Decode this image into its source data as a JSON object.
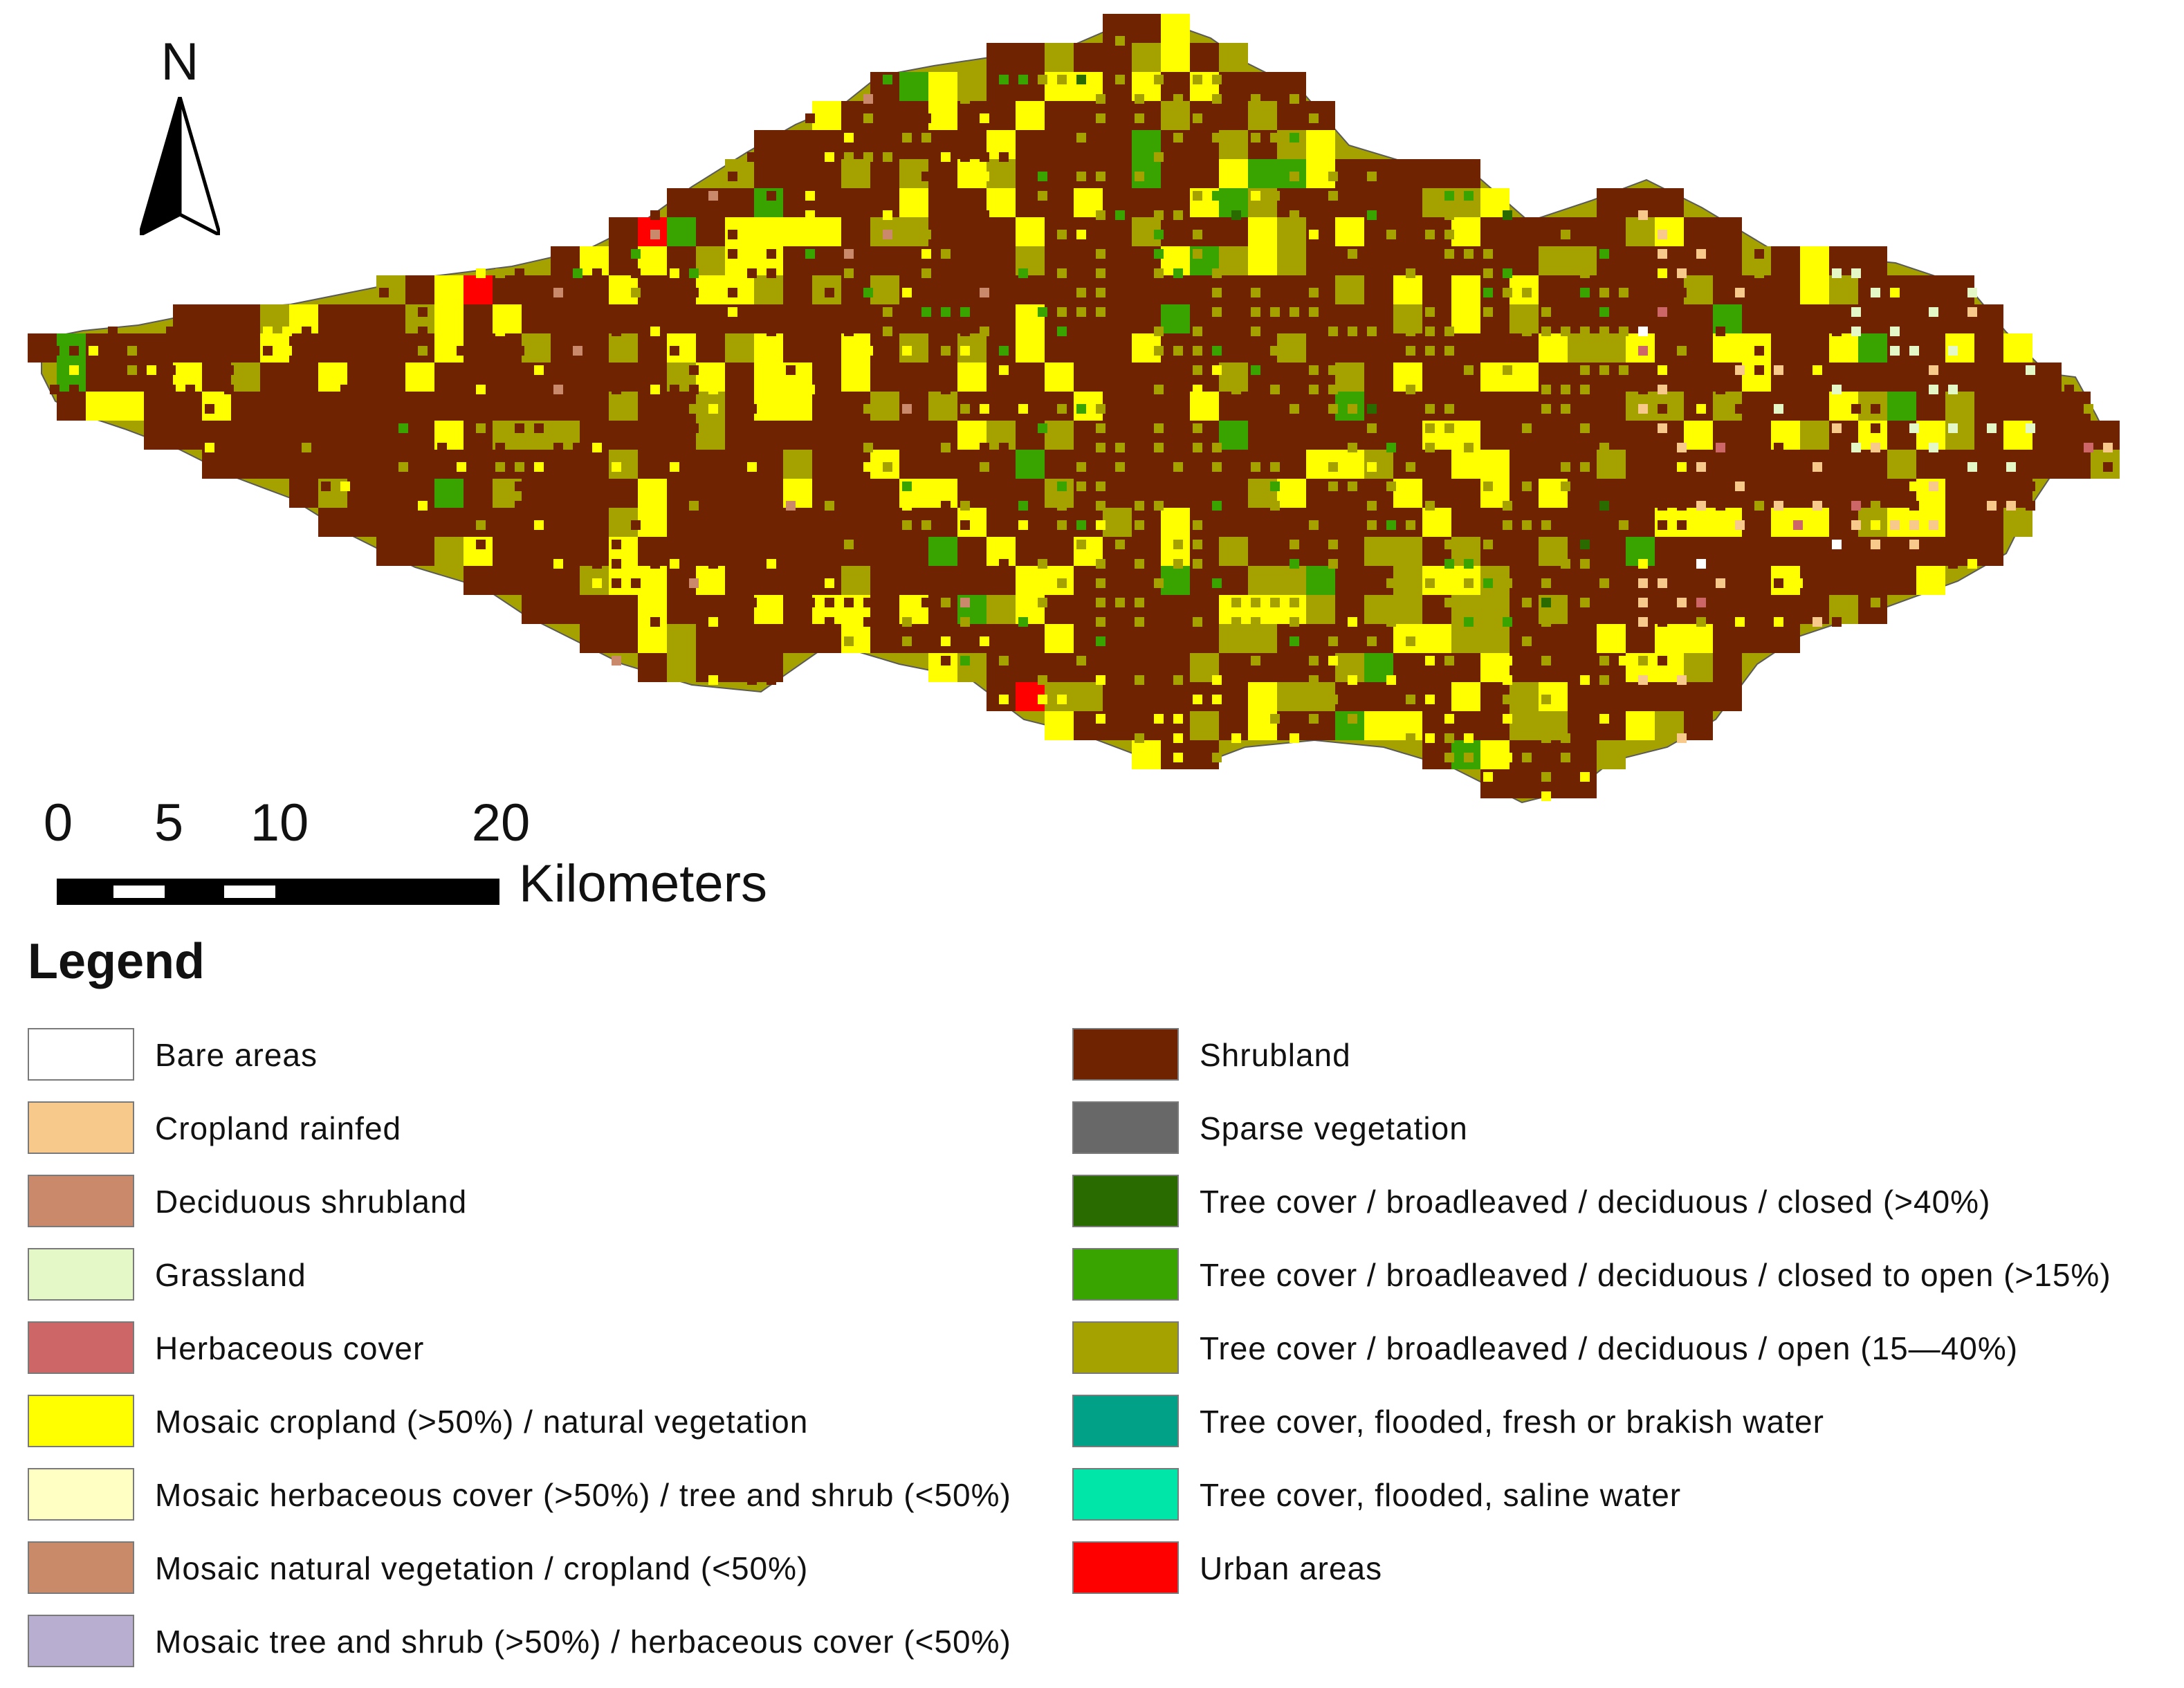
{
  "map": {
    "north_label": "N",
    "scale": {
      "ticks": [
        "0",
        "5",
        "10",
        "20"
      ],
      "units": "Kilometers"
    }
  },
  "legend": {
    "title": "Legend",
    "items": [
      {
        "label": "Bare areas",
        "color": "#ffffff",
        "key": "bare"
      },
      {
        "label": "Cropland rainfed",
        "color": "#f7c98a",
        "key": "crop"
      },
      {
        "label": "Deciduous shrubland",
        "color": "#c9896a",
        "key": "decshrub"
      },
      {
        "label": "Grassland",
        "color": "#e3f7c7",
        "key": "grass"
      },
      {
        "label": "Herbaceous cover",
        "color": "#cd6666",
        "key": "herb"
      },
      {
        "label": "Mosaic cropland (>50%) / natural vegetation",
        "color": "#ffff00",
        "key": "moscrop"
      },
      {
        "label": "Mosaic herbaceous cover (>50%) / tree and shrub (<50%)",
        "color": "#ffffc4",
        "key": "mosherb"
      },
      {
        "label": "Mosaic natural vegetation / cropland (<50%)",
        "color": "#c98a6a",
        "key": "mosnat"
      },
      {
        "label": "Mosaic tree and shrub (>50%) / herbaceous cover (<50%)",
        "color": "#b8aed0",
        "key": "mostree"
      },
      {
        "label": "Shrubland",
        "color": "#6f2300",
        "key": "shrub"
      },
      {
        "label": "Sparse vegetation",
        "color": "#686868",
        "key": "sparse"
      },
      {
        "label": "Tree cover /  broadleaved / deciduous / closed  (>40%)",
        "color": "#2a6b00",
        "key": "treeclosed"
      },
      {
        "label": "Tree cover /  broadleaved / deciduous / closed to open (>15%)",
        "color": "#39a300",
        "key": "treecto"
      },
      {
        "label": "Tree cover /  broadleaved / deciduous / open (15—40%)",
        "color": "#a5a200",
        "key": "treeopen"
      },
      {
        "label": "Tree cover, flooded, fresh or brakish water",
        "color": "#00a186",
        "key": "floodfresh"
      },
      {
        "label": "Tree cover, flooded, saline water",
        "color": "#00e5a8",
        "key": "floodsaline"
      },
      {
        "label": "Urban areas",
        "color": "#ff0000",
        "key": "urban"
      }
    ]
  }
}
